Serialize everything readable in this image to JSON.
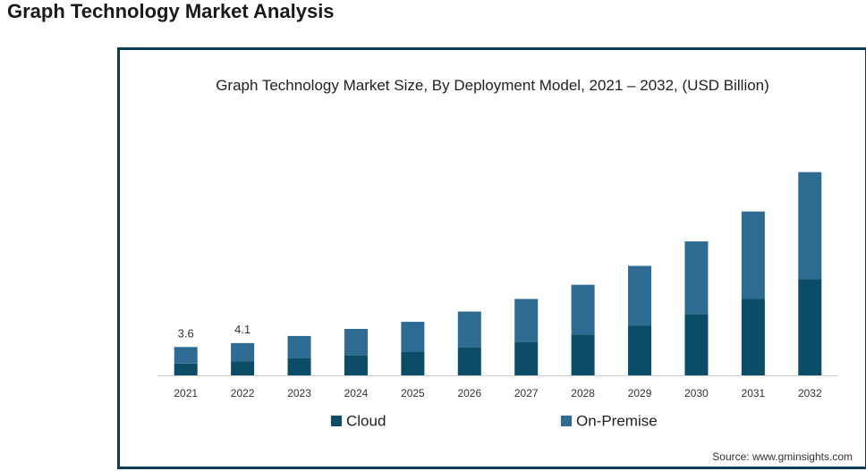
{
  "page": {
    "heading": "Graph Technology Market Analysis"
  },
  "colors": {
    "cloud": "#0b4d66",
    "on_premise": "#2e6b92",
    "frame": "#0b3e55",
    "axis": "#cfcfcf"
  },
  "chart_data": {
    "type": "bar",
    "stacked": true,
    "title": "Graph Technology Market Size, By Deployment Model, 2021 – 2032, (USD Billion)",
    "xlabel": "",
    "ylabel": "",
    "categories": [
      "2021",
      "2022",
      "2023",
      "2024",
      "2025",
      "2026",
      "2027",
      "2028",
      "2029",
      "2030",
      "2031",
      "2032"
    ],
    "series": [
      {
        "name": "Cloud",
        "values": [
          1.5,
          1.8,
          2.2,
          2.5,
          3.0,
          3.6,
          4.2,
          5.2,
          6.3,
          7.8,
          9.7,
          12.2
        ]
      },
      {
        "name": "On-Premise",
        "values": [
          2.1,
          2.3,
          2.8,
          3.4,
          3.8,
          4.5,
          5.5,
          6.3,
          7.6,
          9.2,
          11.1,
          13.6
        ]
      }
    ],
    "data_labels": [
      {
        "category": "2021",
        "text": "3.6"
      },
      {
        "category": "2022",
        "text": "4.1"
      }
    ],
    "ylim": [
      0,
      27
    ],
    "grid": false,
    "legend_position": "bottom",
    "source": "Source: www.gminsights.com"
  }
}
